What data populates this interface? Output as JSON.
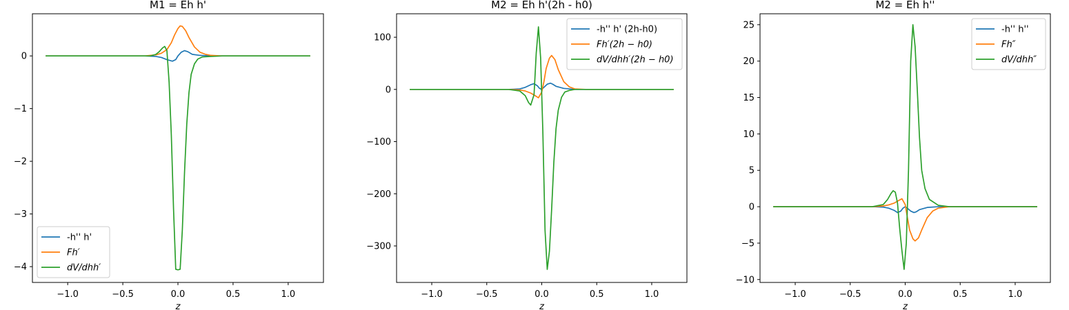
{
  "chart_data": [
    {
      "type": "line",
      "title": "M1 = Eh h'",
      "xlabel": "z",
      "ylabel": "",
      "xlim": [
        -1.32,
        1.32
      ],
      "ylim": [
        -4.3,
        0.8
      ],
      "xticks": [
        -1.0,
        -0.5,
        0.0,
        0.5,
        1.0
      ],
      "xtick_labels": [
        "−1.0",
        "−0.5",
        "0.0",
        "0.5",
        "1.0"
      ],
      "yticks": [
        0,
        -1,
        -2,
        -3,
        -4
      ],
      "ytick_labels": [
        "0",
        "−1",
        "−2",
        "−3",
        "−4"
      ],
      "legend": "lower-left",
      "series": [
        {
          "name": "-h'' h'",
          "color": "#1f77b4",
          "italic": false,
          "x": [
            -1.2,
            -0.3,
            -0.2,
            -0.15,
            -0.1,
            -0.05,
            -0.02,
            0.0,
            0.03,
            0.06,
            0.09,
            0.13,
            0.2,
            0.3,
            1.2
          ],
          "y": [
            0,
            0,
            -0.01,
            -0.03,
            -0.07,
            -0.1,
            -0.07,
            0.0,
            0.07,
            0.1,
            0.08,
            0.03,
            0.01,
            0,
            0
          ]
        },
        {
          "name": "Fh′",
          "color": "#ff7f0e",
          "italic": true,
          "x": [
            -1.2,
            -0.3,
            -0.2,
            -0.15,
            -0.1,
            -0.06,
            -0.03,
            0.0,
            0.02,
            0.04,
            0.07,
            0.1,
            0.15,
            0.2,
            0.25,
            0.3,
            0.4,
            1.2
          ],
          "y": [
            0,
            0,
            0.02,
            0.05,
            0.12,
            0.25,
            0.4,
            0.52,
            0.57,
            0.56,
            0.48,
            0.35,
            0.17,
            0.07,
            0.03,
            0.01,
            0,
            0
          ]
        },
        {
          "name": "dV/dhh′",
          "color": "#2ca02c",
          "italic": true,
          "x": [
            -1.2,
            -0.3,
            -0.25,
            -0.2,
            -0.17,
            -0.14,
            -0.12,
            -0.1,
            -0.08,
            -0.06,
            -0.04,
            -0.02,
            0.0,
            0.02,
            0.04,
            0.06,
            0.08,
            0.1,
            0.12,
            0.15,
            0.18,
            0.22,
            0.3,
            0.4,
            1.2
          ],
          "y": [
            0,
            0,
            0.0,
            0.03,
            0.08,
            0.15,
            0.18,
            0.1,
            -0.5,
            -1.5,
            -2.9,
            -4.05,
            -4.06,
            -4.05,
            -3.3,
            -2.2,
            -1.3,
            -0.7,
            -0.35,
            -0.15,
            -0.06,
            -0.02,
            -0.01,
            0,
            0
          ]
        }
      ]
    },
    {
      "type": "line",
      "title": "M2 = Eh h'(2h - h0)",
      "xlabel": "z",
      "ylabel": "",
      "xlim": [
        -1.32,
        1.32
      ],
      "ylim": [
        -370,
        145
      ],
      "xticks": [
        -1.0,
        -0.5,
        0.0,
        0.5,
        1.0
      ],
      "xtick_labels": [
        "−1.0",
        "−0.5",
        "0.0",
        "0.5",
        "1.0"
      ],
      "yticks": [
        100,
        0,
        -100,
        -200,
        -300
      ],
      "ytick_labels": [
        "100",
        "0",
        "−100",
        "−200",
        "−300"
      ],
      "legend": "top-right",
      "series": [
        {
          "name": "-h'' h' (2h-h0)",
          "color": "#1f77b4",
          "italic": false,
          "x": [
            -1.2,
            -0.3,
            -0.2,
            -0.15,
            -0.1,
            -0.07,
            -0.04,
            -0.02,
            0.0,
            0.02,
            0.05,
            0.08,
            0.1,
            0.13,
            0.2,
            0.3,
            1.2
          ],
          "y": [
            0,
            0,
            1,
            4,
            9,
            11,
            7,
            2,
            0,
            4,
            10,
            12,
            10,
            6,
            2,
            0,
            0
          ]
        },
        {
          "name": "Fh′(2h − h0)",
          "color": "#ff7f0e",
          "italic": true,
          "x": [
            -1.2,
            -0.3,
            -0.2,
            -0.15,
            -0.1,
            -0.06,
            -0.03,
            0.0,
            0.02,
            0.04,
            0.07,
            0.09,
            0.12,
            0.15,
            0.2,
            0.25,
            0.3,
            0.4,
            1.2
          ],
          "y": [
            0,
            0,
            -1,
            -3,
            -7,
            -12,
            -16,
            -5,
            15,
            40,
            60,
            65,
            57,
            38,
            15,
            5,
            1,
            0,
            0
          ]
        },
        {
          "name": "dV/dhh′(2h − h0)",
          "color": "#2ca02c",
          "italic": true,
          "x": [
            -1.2,
            -0.3,
            -0.2,
            -0.15,
            -0.12,
            -0.1,
            -0.07,
            -0.05,
            -0.03,
            -0.01,
            0.01,
            0.03,
            0.05,
            0.07,
            0.09,
            0.11,
            0.13,
            0.15,
            0.18,
            0.21,
            0.25,
            0.3,
            0.4,
            1.2
          ],
          "y": [
            0,
            0,
            -3,
            -12,
            -25,
            -30,
            -10,
            70,
            120,
            60,
            -80,
            -270,
            -345,
            -310,
            -230,
            -140,
            -75,
            -40,
            -15,
            -5,
            -2,
            0,
            0,
            0
          ]
        }
      ]
    },
    {
      "type": "line",
      "title": "M2 = Eh h''",
      "xlabel": "z",
      "ylabel": "",
      "xlim": [
        -1.32,
        1.32
      ],
      "ylim": [
        -10.4,
        26.5
      ],
      "xticks": [
        -1.0,
        -0.5,
        0.0,
        0.5,
        1.0
      ],
      "xtick_labels": [
        "−1.0",
        "−0.5",
        "0.0",
        "0.5",
        "1.0"
      ],
      "yticks": [
        25,
        20,
        15,
        10,
        5,
        0,
        -5,
        -10
      ],
      "ytick_labels": [
        "25",
        "20",
        "15",
        "10",
        "5",
        "0",
        "−5",
        "−10"
      ],
      "legend": "top-right",
      "series": [
        {
          "name": "-h'' h''",
          "color": "#1f77b4",
          "italic": false,
          "x": [
            -1.2,
            -0.3,
            -0.2,
            -0.15,
            -0.1,
            -0.07,
            -0.04,
            -0.02,
            0.0,
            0.02,
            0.05,
            0.08,
            0.1,
            0.13,
            0.2,
            0.3,
            1.2
          ],
          "y": [
            0,
            0,
            -0.05,
            -0.2,
            -0.5,
            -0.8,
            -0.6,
            -0.2,
            0.0,
            -0.2,
            -0.6,
            -0.8,
            -0.7,
            -0.4,
            -0.1,
            0,
            0
          ]
        },
        {
          "name": "Fh″",
          "color": "#ff7f0e",
          "italic": true,
          "x": [
            -1.2,
            -0.3,
            -0.2,
            -0.15,
            -0.1,
            -0.06,
            -0.03,
            0.0,
            0.02,
            0.04,
            0.07,
            0.09,
            0.12,
            0.15,
            0.2,
            0.25,
            0.3,
            0.4,
            1.2
          ],
          "y": [
            0,
            0,
            0.1,
            0.25,
            0.5,
            0.85,
            1.1,
            0.3,
            -1.5,
            -3.2,
            -4.4,
            -4.7,
            -4.3,
            -3.2,
            -1.5,
            -0.6,
            -0.2,
            0,
            0
          ]
        },
        {
          "name": "dV/dhh″",
          "color": "#2ca02c",
          "italic": true,
          "x": [
            -1.2,
            -0.3,
            -0.2,
            -0.16,
            -0.13,
            -0.11,
            -0.09,
            -0.07,
            -0.05,
            -0.03,
            -0.01,
            0.01,
            0.03,
            0.05,
            0.07,
            0.09,
            0.11,
            0.13,
            0.15,
            0.18,
            0.22,
            0.3,
            0.4,
            1.2
          ],
          "y": [
            0,
            0,
            0.3,
            1.0,
            1.8,
            2.2,
            2.0,
            0.5,
            -3,
            -6,
            -8.6,
            -5,
            5,
            20,
            25,
            22,
            16,
            9.5,
            5,
            2.5,
            1,
            0.2,
            0,
            0
          ]
        }
      ]
    }
  ]
}
